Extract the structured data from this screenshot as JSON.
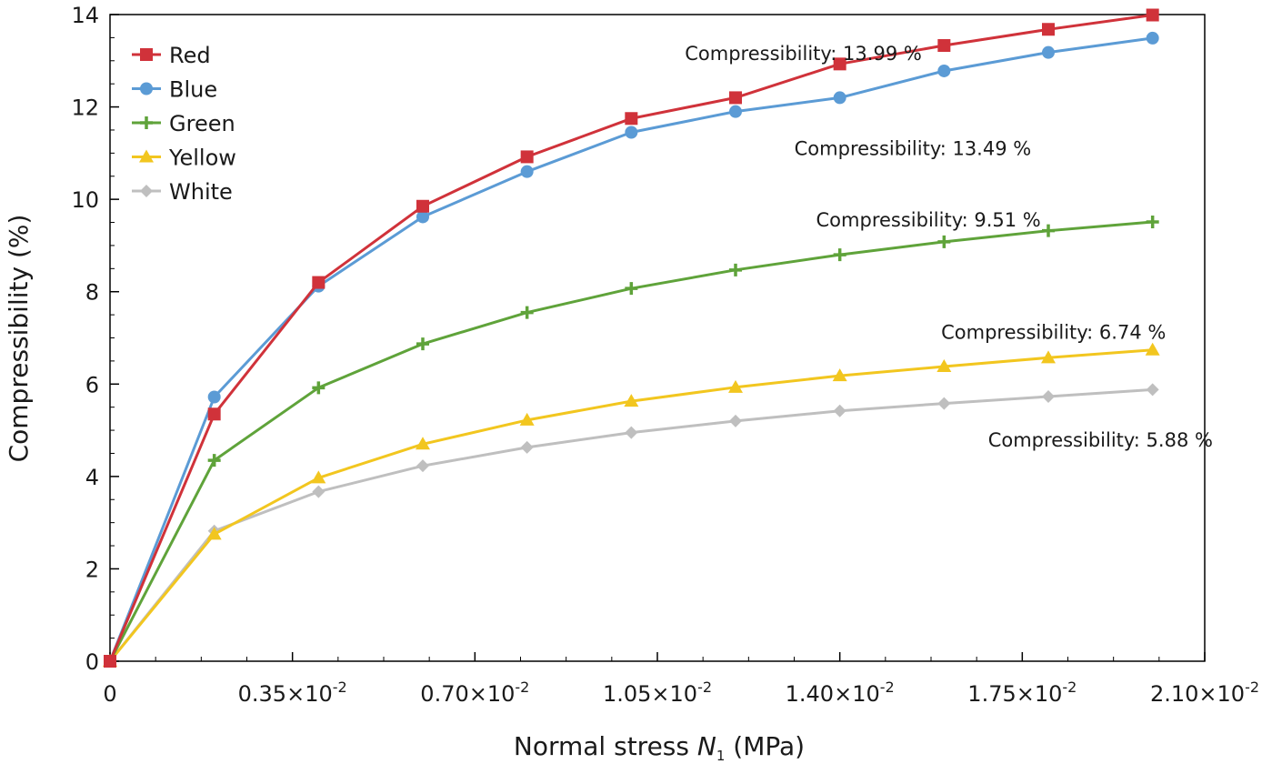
{
  "chart_data": {
    "type": "line",
    "title": "",
    "ylabel": "Compressibility (%)",
    "xlabel": {
      "prefix": "Normal stress ",
      "var": "N",
      "sub": "1",
      "suffix": " (MPa)"
    },
    "xlim": [
      0,
      0.021
    ],
    "ylim": [
      0,
      14
    ],
    "x_ticks": [
      {
        "value": 0,
        "label": "0",
        "exp": ""
      },
      {
        "value": 0.0035,
        "label": "0.35×10",
        "exp": "-2"
      },
      {
        "value": 0.007,
        "label": "0.70×10",
        "exp": "-2"
      },
      {
        "value": 0.0105,
        "label": "1.05×10",
        "exp": "-2"
      },
      {
        "value": 0.014,
        "label": "1.40×10",
        "exp": "-2"
      },
      {
        "value": 0.0175,
        "label": "1.75×10",
        "exp": "-2"
      },
      {
        "value": 0.021,
        "label": "2.10×10",
        "exp": "-2"
      }
    ],
    "y_ticks": [
      0,
      2,
      4,
      6,
      8,
      10,
      12,
      14
    ],
    "grid": false,
    "legend_position": "top-left",
    "x": [
      0,
      0.002,
      0.004,
      0.006,
      0.008,
      0.01,
      0.012,
      0.014,
      0.016,
      0.018,
      0.02
    ],
    "series": [
      {
        "name": "Red",
        "color": "#d0323a",
        "marker": "square",
        "values": [
          0,
          5.35,
          8.2,
          9.85,
          10.92,
          11.75,
          12.2,
          12.93,
          13.33,
          13.68,
          13.99
        ]
      },
      {
        "name": "Blue",
        "color": "#5b9bd5",
        "marker": "circle",
        "values": [
          0,
          5.72,
          8.12,
          9.62,
          10.6,
          11.45,
          11.9,
          12.2,
          12.78,
          13.18,
          13.49
        ]
      },
      {
        "name": "Green",
        "color": "#5fa33a",
        "marker": "plus",
        "values": [
          0,
          4.35,
          5.92,
          6.87,
          7.55,
          8.07,
          8.47,
          8.8,
          9.08,
          9.32,
          9.51
        ]
      },
      {
        "name": "Yellow",
        "color": "#f2c61f",
        "marker": "triangle",
        "values": [
          0,
          2.75,
          3.97,
          4.7,
          5.22,
          5.63,
          5.93,
          6.18,
          6.38,
          6.57,
          6.74
        ]
      },
      {
        "name": "White",
        "color": "#bfbfbf",
        "marker": "diamond",
        "values": [
          0,
          2.82,
          3.67,
          4.23,
          4.63,
          4.95,
          5.2,
          5.42,
          5.58,
          5.73,
          5.88
        ]
      }
    ],
    "annotations": [
      {
        "text": "Compressibility: 13.99 %",
        "x": 0.0133,
        "y": 13.15
      },
      {
        "text": "Compressibility: 13.49 %",
        "x": 0.0154,
        "y": 11.1
      },
      {
        "text": "Compressibility: 9.51 %",
        "x": 0.0157,
        "y": 9.55
      },
      {
        "text": "Compressibility: 6.74 %",
        "x": 0.0181,
        "y": 7.12
      },
      {
        "text": "Compressibility: 5.88 %",
        "x": 0.019,
        "y": 4.78
      }
    ]
  }
}
